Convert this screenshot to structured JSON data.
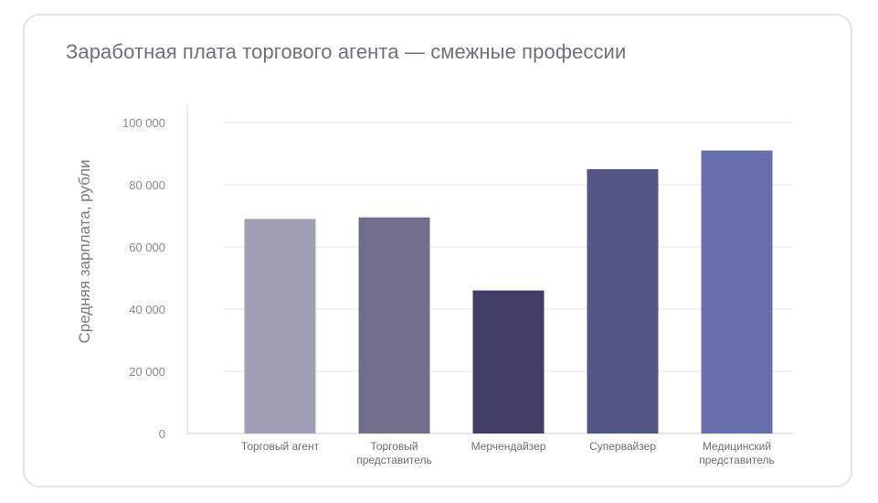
{
  "chart_data": {
    "type": "bar",
    "title": "Заработная плата торгового агента — смежные профессии",
    "xlabel": "",
    "ylabel": "Средняя зарплата, рубли",
    "ylim": [
      0,
      100000
    ],
    "yticks": [
      0,
      20000,
      40000,
      60000,
      80000,
      100000
    ],
    "ytick_labels": [
      "0",
      "20 000",
      "40 000",
      "60 000",
      "80 000",
      "100 000"
    ],
    "grid": true,
    "categories": [
      [
        "Торговый агент"
      ],
      [
        "Торговый",
        "представитель"
      ],
      [
        "Мерчендайзер"
      ],
      [
        "Супервайзер"
      ],
      [
        "Медицинский",
        "представитель"
      ]
    ],
    "values": [
      69000,
      69500,
      46000,
      85000,
      91000
    ],
    "colors": [
      "#a1a0b4",
      "#716f8b",
      "#413e66",
      "#545587",
      "#686dab"
    ]
  }
}
